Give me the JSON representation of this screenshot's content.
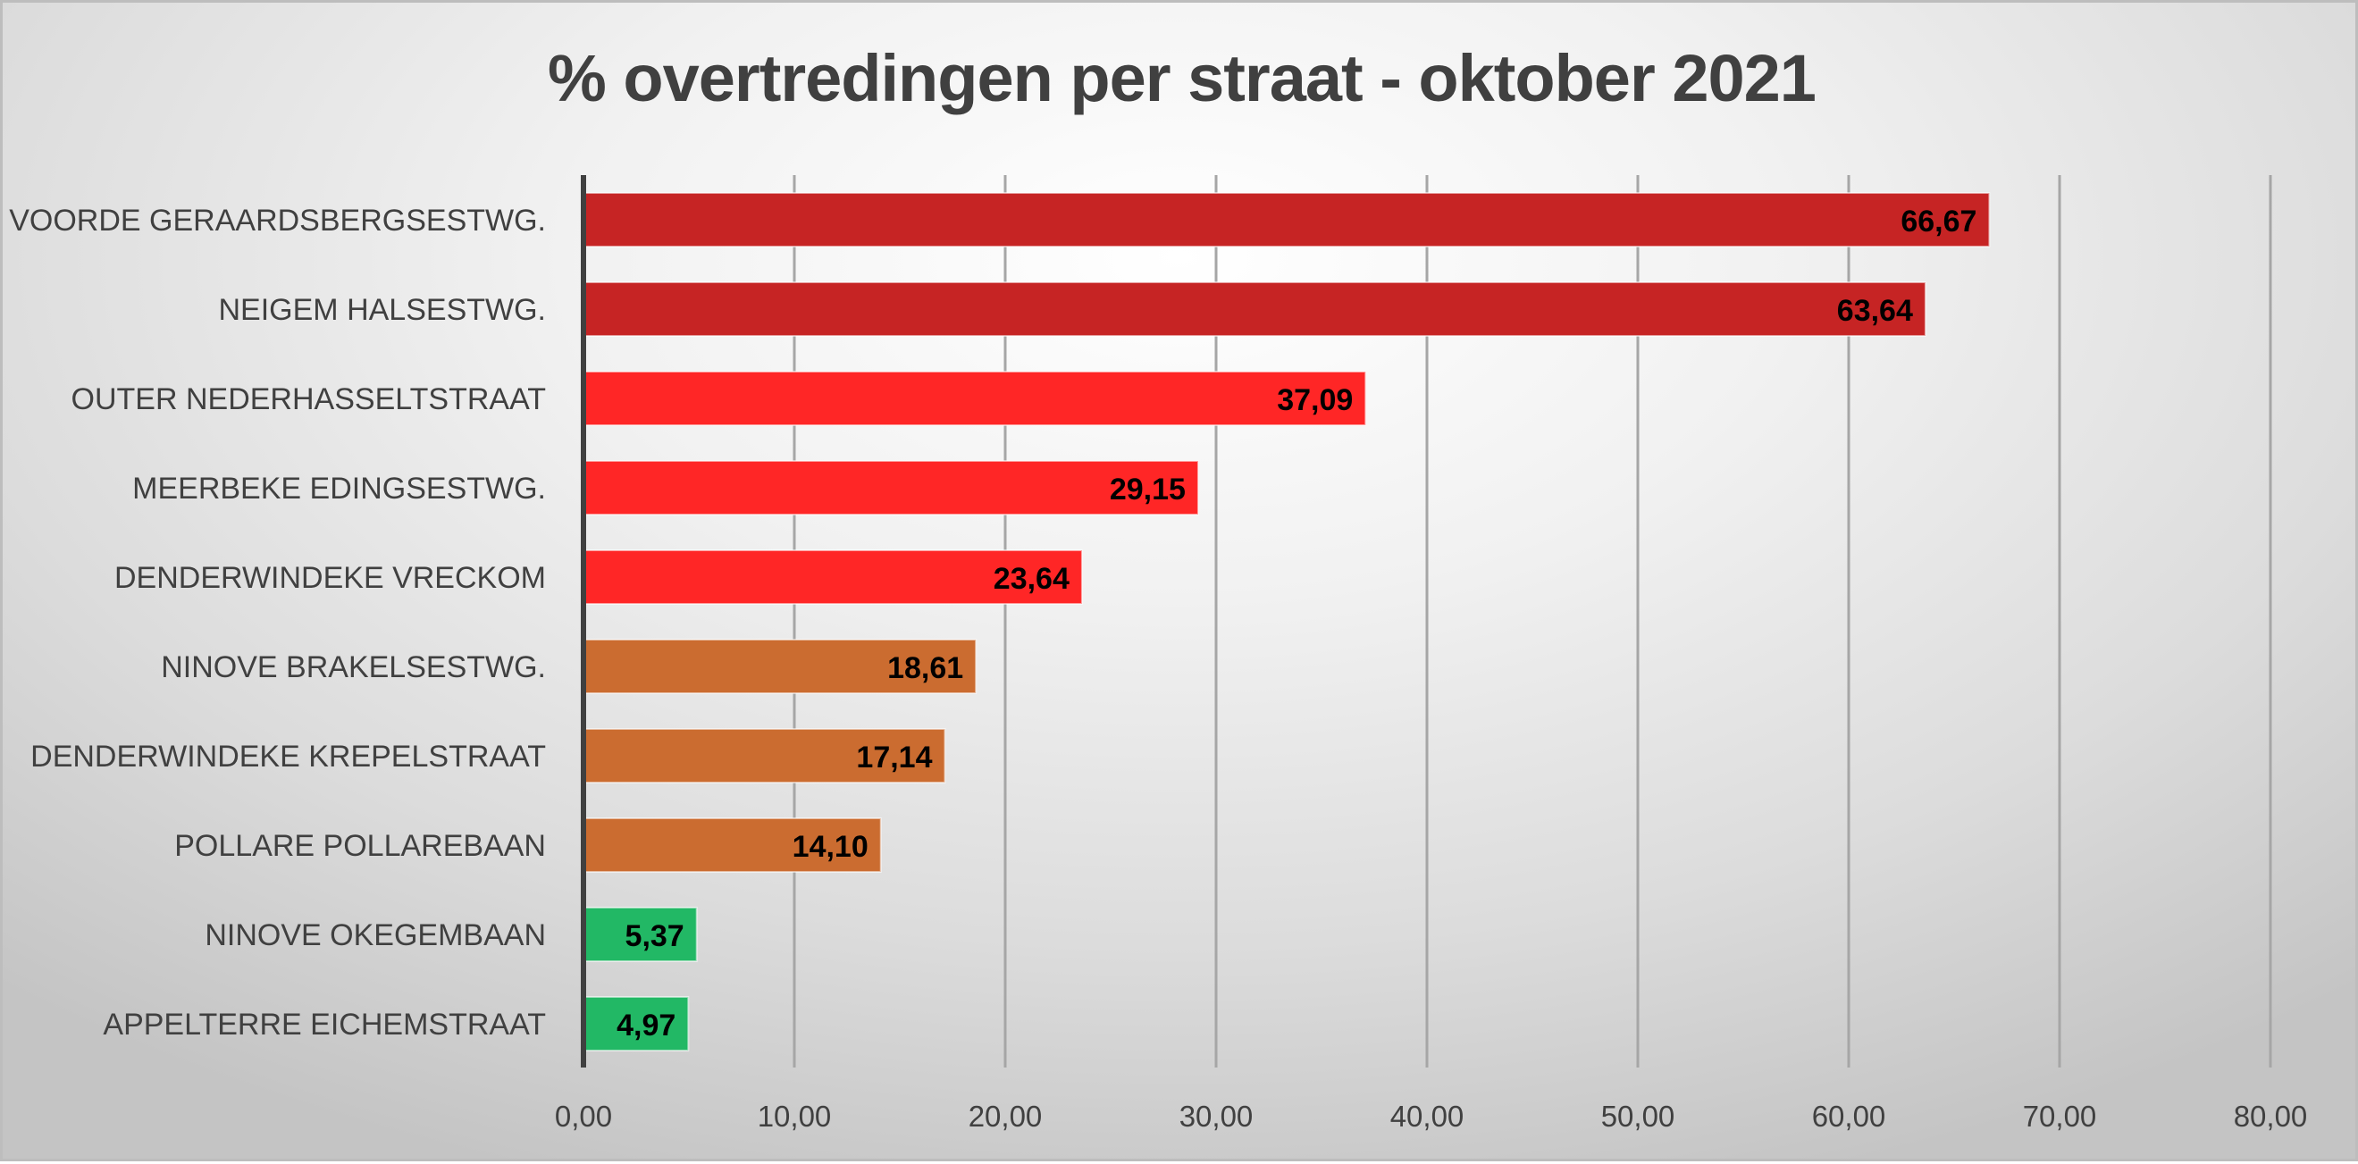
{
  "chart_data": {
    "type": "bar",
    "orientation": "horizontal",
    "title": "% overtredingen per straat - oktober 2021",
    "xlabel": "",
    "ylabel": "",
    "xlim": [
      0,
      80
    ],
    "xticks": [
      0,
      10,
      20,
      30,
      40,
      50,
      60,
      70,
      80
    ],
    "xtick_labels": [
      "0,00",
      "10,00",
      "20,00",
      "30,00",
      "40,00",
      "50,00",
      "60,00",
      "70,00",
      "80,00"
    ],
    "grid": "vertical",
    "legend": "none",
    "categories": [
      "VOORDE GERAARDSBERGSESTWG.",
      "NEIGEM HALSESTWG.",
      "OUTER NEDERHASSELTSTRAAT",
      "MEERBEKE EDINGSESTWG.",
      "DENDERWINDEKE VRECKOM",
      "NINOVE BRAKELSESTWG.",
      "DENDERWINDEKE KREPELSTRAAT",
      "POLLARE POLLAREBAAN",
      "NINOVE OKEGEMBAAN",
      "APPELTERRE EICHEMSTRAAT"
    ],
    "values": [
      66.67,
      63.64,
      37.09,
      29.15,
      23.64,
      18.61,
      17.14,
      14.1,
      5.37,
      4.97
    ],
    "value_labels": [
      "66,67",
      "63,64",
      "37,09",
      "29,15",
      "23,64",
      "18,61",
      "17,14",
      "14,10",
      "5,37",
      "4,97"
    ],
    "bar_colors": [
      "#c62424",
      "#c62424",
      "#ff2626",
      "#ff2626",
      "#ff2626",
      "#cb6c30",
      "#cb6c30",
      "#cb6c30",
      "#22b865",
      "#22b865"
    ]
  },
  "colors": {
    "text": "#404040",
    "axis": "#404040",
    "grid": "#a6a6a6"
  }
}
